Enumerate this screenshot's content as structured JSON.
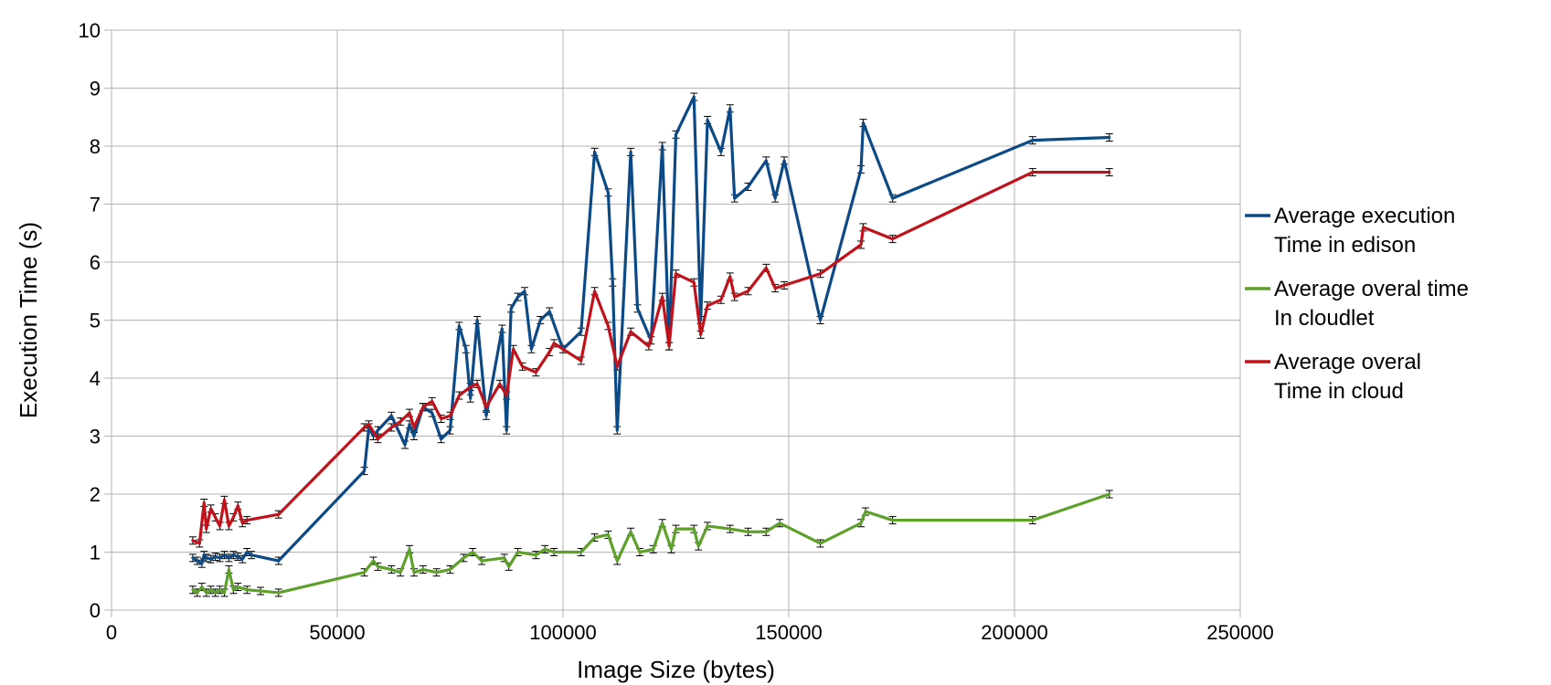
{
  "chart_data": {
    "type": "line",
    "title": "",
    "xlabel": "Image Size (bytes)",
    "ylabel": "Execution Time (s)",
    "xlim": [
      0,
      250000
    ],
    "ylim": [
      0,
      10
    ],
    "xticks": [
      "0",
      "50000",
      "100000",
      "150000",
      "200000",
      "250000"
    ],
    "yticks": [
      "0",
      "1",
      "2",
      "3",
      "4",
      "5",
      "6",
      "7",
      "8",
      "9",
      "10"
    ],
    "grid": true,
    "error_bars": true,
    "legend_position": "right",
    "series": [
      {
        "name": "Average execution Time in edison",
        "legend_lines": [
          "Average  execution",
          " Time in edison"
        ],
        "color": "#0b4a86",
        "points": [
          [
            18000,
            0.9
          ],
          [
            19000,
            0.85
          ],
          [
            20000,
            0.8
          ],
          [
            20500,
            0.95
          ],
          [
            21000,
            0.9
          ],
          [
            22000,
            0.88
          ],
          [
            23000,
            0.92
          ],
          [
            24000,
            0.9
          ],
          [
            25000,
            0.95
          ],
          [
            26000,
            0.9
          ],
          [
            27000,
            0.95
          ],
          [
            28000,
            0.92
          ],
          [
            29000,
            0.88
          ],
          [
            30000,
            1.0
          ],
          [
            31000,
            0.95
          ],
          [
            37000,
            0.85
          ],
          [
            56000,
            2.4
          ],
          [
            57000,
            3.15
          ],
          [
            58000,
            3.0
          ],
          [
            59000,
            3.1
          ],
          [
            62000,
            3.35
          ],
          [
            65000,
            2.85
          ],
          [
            66000,
            3.2
          ],
          [
            67000,
            3.0
          ],
          [
            69000,
            3.5
          ],
          [
            71000,
            3.4
          ],
          [
            73000,
            2.95
          ],
          [
            75000,
            3.1
          ],
          [
            77000,
            4.9
          ],
          [
            78500,
            4.5
          ],
          [
            79500,
            3.65
          ],
          [
            81000,
            5.0
          ],
          [
            83000,
            3.35
          ],
          [
            86500,
            4.85
          ],
          [
            87500,
            3.1
          ],
          [
            88500,
            5.2
          ],
          [
            90000,
            5.4
          ],
          [
            91500,
            5.5
          ],
          [
            93000,
            4.5
          ],
          [
            95000,
            5.0
          ],
          [
            97000,
            5.15
          ],
          [
            100000,
            4.5
          ],
          [
            104000,
            4.8
          ],
          [
            107000,
            7.9
          ],
          [
            110000,
            7.2
          ],
          [
            111000,
            5.65
          ],
          [
            112000,
            3.1
          ],
          [
            115000,
            7.9
          ],
          [
            116500,
            5.2
          ],
          [
            119500,
            4.65
          ],
          [
            122000,
            8.0
          ],
          [
            123500,
            4.55
          ],
          [
            125000,
            8.2
          ],
          [
            129000,
            8.85
          ],
          [
            130500,
            5.0
          ],
          [
            132000,
            8.45
          ],
          [
            135000,
            7.9
          ],
          [
            137000,
            8.65
          ],
          [
            138000,
            7.1
          ],
          [
            141000,
            7.3
          ],
          [
            145000,
            7.75
          ],
          [
            147000,
            7.1
          ],
          [
            149000,
            7.75
          ],
          [
            157000,
            5.0
          ],
          [
            166000,
            7.6
          ],
          [
            166500,
            8.4
          ],
          [
            173000,
            7.1
          ],
          [
            204000,
            8.1
          ],
          [
            221000,
            8.15
          ]
        ]
      },
      {
        "name": "Average overal time In cloudlet",
        "legend_lines": [
          "Average overal time",
          " In cloudlet"
        ],
        "color": "#5da12b",
        "points": [
          [
            18000,
            0.35
          ],
          [
            19000,
            0.3
          ],
          [
            20000,
            0.4
          ],
          [
            21000,
            0.3
          ],
          [
            22000,
            0.35
          ],
          [
            23000,
            0.3
          ],
          [
            24000,
            0.35
          ],
          [
            25000,
            0.3
          ],
          [
            26000,
            0.7
          ],
          [
            27000,
            0.35
          ],
          [
            28000,
            0.4
          ],
          [
            30000,
            0.35
          ],
          [
            33000,
            0.33
          ],
          [
            37000,
            0.3
          ],
          [
            56000,
            0.65
          ],
          [
            58000,
            0.85
          ],
          [
            59000,
            0.75
          ],
          [
            62000,
            0.7
          ],
          [
            64000,
            0.65
          ],
          [
            66000,
            1.05
          ],
          [
            67000,
            0.65
          ],
          [
            69000,
            0.7
          ],
          [
            72000,
            0.65
          ],
          [
            75000,
            0.7
          ],
          [
            78000,
            0.9
          ],
          [
            80000,
            1.0
          ],
          [
            82000,
            0.85
          ],
          [
            87000,
            0.9
          ],
          [
            88000,
            0.75
          ],
          [
            90000,
            1.0
          ],
          [
            94000,
            0.95
          ],
          [
            96000,
            1.05
          ],
          [
            98000,
            1.0
          ],
          [
            104000,
            1.0
          ],
          [
            107000,
            1.25
          ],
          [
            110000,
            1.3
          ],
          [
            112000,
            0.85
          ],
          [
            115000,
            1.35
          ],
          [
            117000,
            1.0
          ],
          [
            120000,
            1.05
          ],
          [
            122000,
            1.5
          ],
          [
            124000,
            1.05
          ],
          [
            125000,
            1.4
          ],
          [
            129000,
            1.4
          ],
          [
            130000,
            1.1
          ],
          [
            132000,
            1.45
          ],
          [
            137000,
            1.4
          ],
          [
            141000,
            1.35
          ],
          [
            145000,
            1.35
          ],
          [
            148000,
            1.5
          ],
          [
            157000,
            1.15
          ],
          [
            166000,
            1.5
          ],
          [
            167000,
            1.7
          ],
          [
            173000,
            1.55
          ],
          [
            204000,
            1.55
          ],
          [
            221000,
            2.0
          ]
        ]
      },
      {
        "name": "Average overal Time in cloud",
        "legend_lines": [
          "Average overal",
          " Time in cloud"
        ],
        "color": "#c0121b",
        "points": [
          [
            18000,
            1.2
          ],
          [
            19500,
            1.15
          ],
          [
            20500,
            1.85
          ],
          [
            21000,
            1.4
          ],
          [
            22000,
            1.75
          ],
          [
            23000,
            1.6
          ],
          [
            24000,
            1.45
          ],
          [
            25000,
            1.9
          ],
          [
            26000,
            1.45
          ],
          [
            27000,
            1.6
          ],
          [
            28000,
            1.8
          ],
          [
            29000,
            1.5
          ],
          [
            30000,
            1.55
          ],
          [
            37000,
            1.65
          ],
          [
            56000,
            3.15
          ],
          [
            57000,
            3.2
          ],
          [
            59000,
            2.95
          ],
          [
            62000,
            3.15
          ],
          [
            64000,
            3.25
          ],
          [
            66000,
            3.4
          ],
          [
            67000,
            3.15
          ],
          [
            69000,
            3.5
          ],
          [
            71000,
            3.6
          ],
          [
            73000,
            3.3
          ],
          [
            75000,
            3.35
          ],
          [
            77000,
            3.7
          ],
          [
            79500,
            3.85
          ],
          [
            81000,
            3.9
          ],
          [
            83000,
            3.5
          ],
          [
            86000,
            3.9
          ],
          [
            87500,
            3.7
          ],
          [
            89000,
            4.5
          ],
          [
            91000,
            4.2
          ],
          [
            94000,
            4.1
          ],
          [
            97000,
            4.45
          ],
          [
            98000,
            4.6
          ],
          [
            104000,
            4.3
          ],
          [
            107000,
            5.5
          ],
          [
            110000,
            4.9
          ],
          [
            112000,
            4.2
          ],
          [
            115000,
            4.8
          ],
          [
            119000,
            4.55
          ],
          [
            122000,
            5.4
          ],
          [
            123500,
            4.55
          ],
          [
            125000,
            5.8
          ],
          [
            129000,
            5.65
          ],
          [
            130500,
            4.75
          ],
          [
            132000,
            5.25
          ],
          [
            135000,
            5.35
          ],
          [
            137000,
            5.75
          ],
          [
            138000,
            5.4
          ],
          [
            141000,
            5.5
          ],
          [
            145000,
            5.9
          ],
          [
            147000,
            5.55
          ],
          [
            149000,
            5.6
          ],
          [
            157000,
            5.8
          ],
          [
            166000,
            6.3
          ],
          [
            166500,
            6.6
          ],
          [
            173000,
            6.4
          ],
          [
            204000,
            7.55
          ],
          [
            221000,
            7.55
          ]
        ]
      }
    ]
  }
}
